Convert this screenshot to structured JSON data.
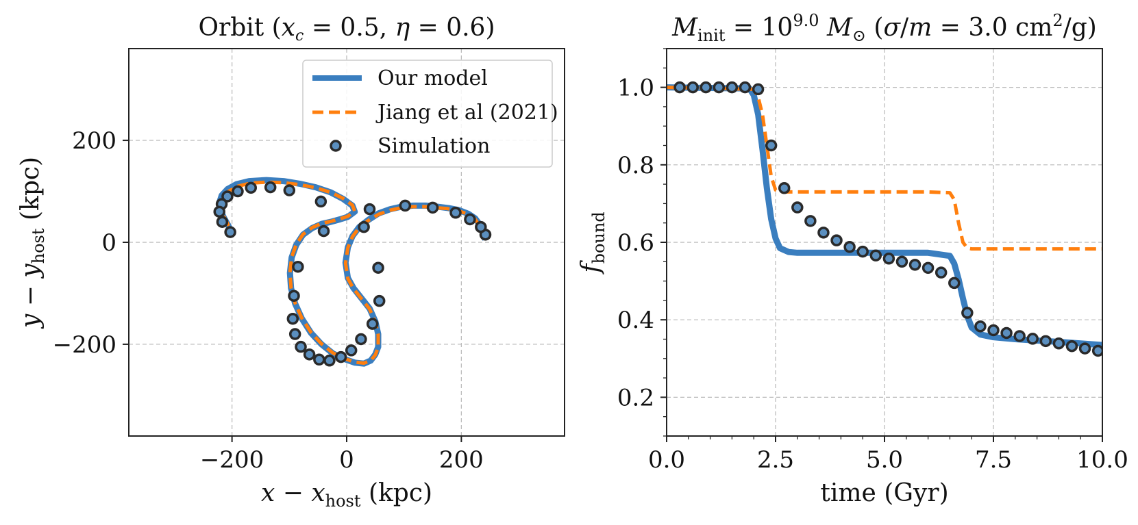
{
  "chart_data": [
    {
      "type": "line",
      "title": "Orbit (x_c = 0.5, η = 0.6)",
      "xlabel": "x − x_host (kpc)",
      "ylabel": "y − y_host (kpc)",
      "xlim": [
        -380,
        380
      ],
      "ylim": [
        -380,
        380
      ],
      "xticks": [
        -200,
        0,
        200
      ],
      "yticks": [
        -200,
        0,
        200
      ],
      "xtick_labels": [
        "−200",
        "0",
        "200"
      ],
      "ytick_labels": [
        "−200",
        "0",
        "200"
      ],
      "grid": true,
      "legend_position": "top-right",
      "series": [
        {
          "name": "Our model",
          "style": "solid",
          "color": "#3a7ebf",
          "x": [
            242,
            238,
            232,
            224,
            212,
            196,
            178,
            158,
            138,
            116,
            96,
            76,
            56,
            38,
            22,
            10,
            2,
            -2,
            2,
            12,
            26,
            40,
            50,
            55,
            55,
            50,
            42,
            30,
            14,
            -4,
            -24,
            -44,
            -62,
            -78,
            -90,
            -97,
            -99,
            -96,
            -88,
            -76,
            -60,
            -44,
            -28,
            -12,
            2,
            14,
            10,
            -6,
            -28,
            -54,
            -82,
            -110,
            -140,
            -170,
            -192,
            -208,
            -218,
            -222,
            -220,
            -214,
            -206,
            -200
          ],
          "y": [
            5,
            20,
            35,
            47,
            56,
            63,
            67,
            70,
            72,
            72,
            70,
            65,
            57,
            44,
            30,
            12,
            -10,
            -40,
            -70,
            -90,
            -110,
            -130,
            -155,
            -180,
            -205,
            -220,
            -232,
            -238,
            -236,
            -229,
            -218,
            -200,
            -178,
            -150,
            -120,
            -90,
            -60,
            -30,
            -5,
            15,
            28,
            36,
            40,
            45,
            50,
            60,
            72,
            85,
            98,
            108,
            115,
            120,
            122,
            120,
            114,
            104,
            92,
            78,
            62,
            48,
            32,
            16
          ]
        },
        {
          "name": "Jiang et al (2021)",
          "style": "dashed",
          "color": "#ff7f0e",
          "x": [
            240,
            236,
            230,
            222,
            210,
            194,
            176,
            156,
            136,
            116,
            96,
            76,
            56,
            38,
            22,
            10,
            2,
            -2,
            2,
            12,
            26,
            40,
            50,
            55,
            55,
            50,
            42,
            30,
            14,
            -4,
            -24,
            -44,
            -62,
            -78,
            -90,
            -97,
            -99,
            -96,
            -88,
            -76,
            -60,
            -44,
            -28,
            -12,
            2,
            14,
            10,
            -6,
            -28,
            -54,
            -82,
            -110,
            -140,
            -168,
            -190,
            -206,
            -216,
            -220,
            -218,
            -212,
            -205,
            -199
          ],
          "y": [
            8,
            22,
            36,
            48,
            56,
            62,
            66,
            68,
            70,
            70,
            68,
            63,
            55,
            43,
            29,
            11,
            -11,
            -41,
            -71,
            -91,
            -111,
            -131,
            -156,
            -181,
            -206,
            -221,
            -232,
            -237,
            -235,
            -228,
            -217,
            -199,
            -177,
            -149,
            -119,
            -89,
            -59,
            -29,
            -4,
            16,
            29,
            37,
            41,
            46,
            51,
            61,
            73,
            86,
            98,
            107,
            113,
            117,
            118,
            116,
            110,
            100,
            88,
            75,
            60,
            46,
            31,
            17
          ]
        },
        {
          "name": "Simulation",
          "style": "markers",
          "color": "#3a7ebf",
          "x": [
            242,
            234,
            215,
            190,
            150,
            102,
            40,
            30,
            55,
            57,
            45,
            25,
            8,
            -10,
            -30,
            -48,
            -65,
            -80,
            -90,
            -94,
            -92,
            -85,
            -40,
            -45,
            -100,
            -133,
            -167,
            -190,
            -208,
            -218,
            -222,
            -217,
            -203
          ],
          "y": [
            15,
            30,
            45,
            58,
            68,
            72,
            65,
            30,
            -50,
            -115,
            -160,
            -190,
            -212,
            -225,
            -232,
            -230,
            -220,
            -205,
            -180,
            -150,
            -105,
            -48,
            22,
            80,
            102,
            108,
            107,
            100,
            90,
            75,
            60,
            40,
            20
          ]
        }
      ]
    },
    {
      "type": "line",
      "title": "M_init = 10^9.0 M_⊙ (σ/m = 3.0 cm²/g)",
      "xlabel": "time (Gyr)",
      "ylabel": "f_bound",
      "xlim": [
        0,
        10
      ],
      "ylim": [
        0.1,
        1.1
      ],
      "xticks": [
        0,
        2.5,
        5,
        7.5,
        10
      ],
      "yticks": [
        0.2,
        0.4,
        0.6,
        0.8,
        1.0
      ],
      "xtick_labels": [
        "0.0",
        "2.5",
        "5.0",
        "7.5",
        "10.0"
      ],
      "ytick_labels": [
        "0.2",
        "0.4",
        "0.6",
        "0.8",
        "1.0"
      ],
      "grid": true,
      "series": [
        {
          "name": "Our model",
          "style": "solid",
          "color": "#3a7ebf",
          "x": [
            0,
            1.9,
            2.0,
            2.1,
            2.2,
            2.3,
            2.4,
            2.5,
            2.6,
            2.8,
            3.0,
            4.0,
            5.0,
            6.0,
            6.5,
            6.6,
            6.7,
            6.8,
            6.9,
            7.0,
            7.2,
            7.5,
            8.0,
            9.0,
            10.0
          ],
          "values": [
            1.0,
            0.997,
            0.98,
            0.93,
            0.84,
            0.74,
            0.66,
            0.61,
            0.585,
            0.575,
            0.573,
            0.573,
            0.573,
            0.573,
            0.565,
            0.545,
            0.505,
            0.455,
            0.41,
            0.38,
            0.362,
            0.355,
            0.35,
            0.343,
            0.335
          ]
        },
        {
          "name": "Jiang et al (2021)",
          "style": "dashed",
          "color": "#ff7f0e",
          "x": [
            0,
            2.0,
            2.1,
            2.2,
            2.3,
            2.4,
            2.5,
            2.6,
            3.0,
            4.0,
            5.0,
            6.0,
            6.5,
            6.6,
            6.7,
            6.8,
            6.9,
            7.0,
            8.0,
            9.0,
            10.0
          ],
          "values": [
            1.0,
            0.995,
            0.975,
            0.93,
            0.85,
            0.77,
            0.735,
            0.73,
            0.73,
            0.73,
            0.73,
            0.73,
            0.728,
            0.71,
            0.65,
            0.6,
            0.585,
            0.583,
            0.583,
            0.583,
            0.583
          ]
        },
        {
          "name": "Simulation",
          "style": "markers",
          "color": "#3a7ebf",
          "x": [
            0.3,
            0.6,
            0.9,
            1.2,
            1.5,
            1.8,
            2.1,
            2.4,
            2.7,
            3.0,
            3.3,
            3.6,
            3.9,
            4.2,
            4.5,
            4.8,
            5.1,
            5.4,
            5.7,
            6.0,
            6.3,
            6.6,
            6.9,
            7.2,
            7.5,
            7.8,
            8.1,
            8.4,
            8.7,
            9.0,
            9.3,
            9.6,
            9.9
          ],
          "values": [
            1.0,
            1.0,
            1.0,
            1.0,
            1.0,
            1.0,
            0.995,
            0.85,
            0.74,
            0.69,
            0.655,
            0.625,
            0.605,
            0.588,
            0.576,
            0.566,
            0.558,
            0.55,
            0.542,
            0.534,
            0.522,
            0.495,
            0.418,
            0.383,
            0.373,
            0.366,
            0.358,
            0.351,
            0.345,
            0.339,
            0.332,
            0.326,
            0.32
          ]
        }
      ]
    }
  ]
}
